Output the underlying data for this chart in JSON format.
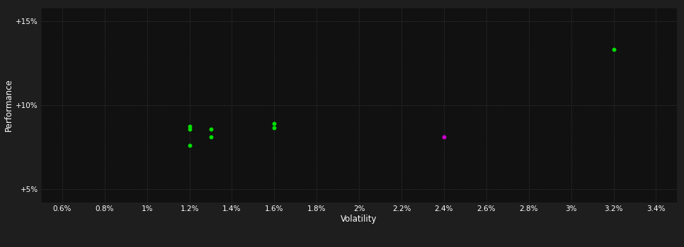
{
  "background_color": "#111111",
  "plot_bg_color": "#111111",
  "outer_bg_color": "#1e1e1e",
  "grid_color": "#333333",
  "text_color": "#ffffff",
  "xlabel": "Volatility",
  "ylabel": "Performance",
  "x_ticks": [
    0.006,
    0.008,
    0.01,
    0.012,
    0.014,
    0.016,
    0.018,
    0.02,
    0.022,
    0.024,
    0.026,
    0.028,
    0.03,
    0.032,
    0.034
  ],
  "x_tick_labels": [
    "0.6%",
    "0.8%",
    "1%",
    "1.2%",
    "1.4%",
    "1.6%",
    "1.8%",
    "2%",
    "2.2%",
    "2.4%",
    "2.6%",
    "2.8%",
    "3%",
    "3.2%",
    "3.4%"
  ],
  "y_ticks": [
    0.05,
    0.1,
    0.15
  ],
  "y_tick_labels": [
    "+5%",
    "+10%",
    "+15%"
  ],
  "xlim": [
    0.005,
    0.035
  ],
  "ylim": [
    0.042,
    0.158
  ],
  "green_points": [
    [
      0.012,
      0.0875
    ],
    [
      0.012,
      0.0855
    ],
    [
      0.013,
      0.0855
    ],
    [
      0.013,
      0.081
    ],
    [
      0.012,
      0.0758
    ],
    [
      0.016,
      0.089
    ],
    [
      0.016,
      0.0865
    ],
    [
      0.032,
      0.133
    ]
  ],
  "magenta_points": [
    [
      0.024,
      0.081
    ]
  ],
  "point_color_green": "#00dd00",
  "point_color_magenta": "#cc00cc",
  "marker_size": 18
}
